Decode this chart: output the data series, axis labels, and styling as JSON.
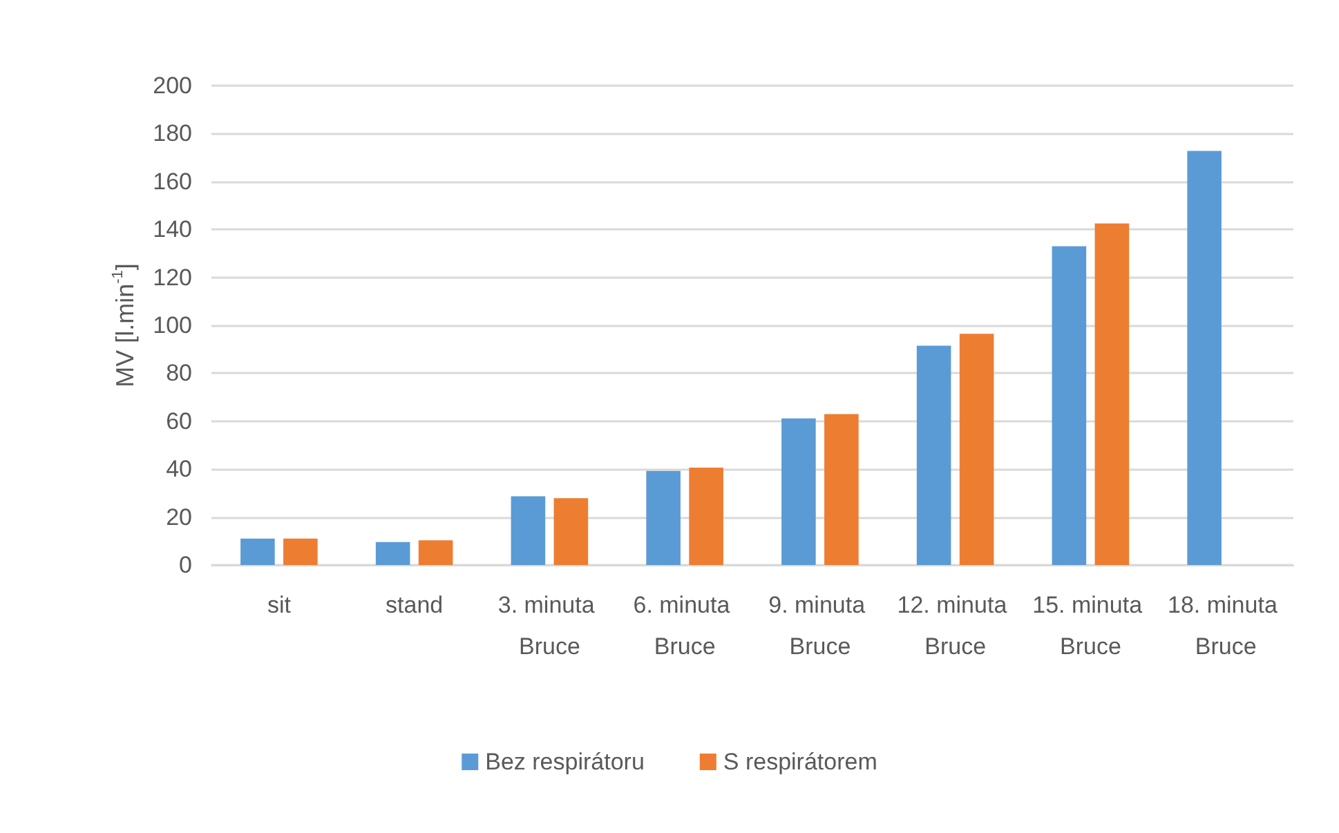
{
  "chart_data": {
    "type": "bar",
    "ylabel": "MV [l.min$^{-1}$]",
    "categories": [
      "sit",
      "stand",
      "3. minuta Bruce",
      "6. minuta Bruce",
      "9. minuta Bruce",
      "12. minuta Bruce",
      "15. minuta Bruce",
      "18. minuta Bruce"
    ],
    "series": [
      {
        "name": "Bez respirátoru",
        "color": "#5b9bd5",
        "values": [
          11,
          9.6,
          28.7,
          39.3,
          61.2,
          91.5,
          133,
          172.8
        ]
      },
      {
        "name": "S respirátorem",
        "color": "#ed7d31",
        "values": [
          11,
          10.3,
          27.9,
          40.6,
          63,
          96.5,
          142.5,
          null
        ]
      }
    ],
    "ylim": [
      0,
      200
    ],
    "yticks": [
      0,
      20,
      40,
      60,
      80,
      100,
      120,
      140,
      160,
      180,
      200
    ],
    "grid": "y",
    "legend": "bottom"
  }
}
